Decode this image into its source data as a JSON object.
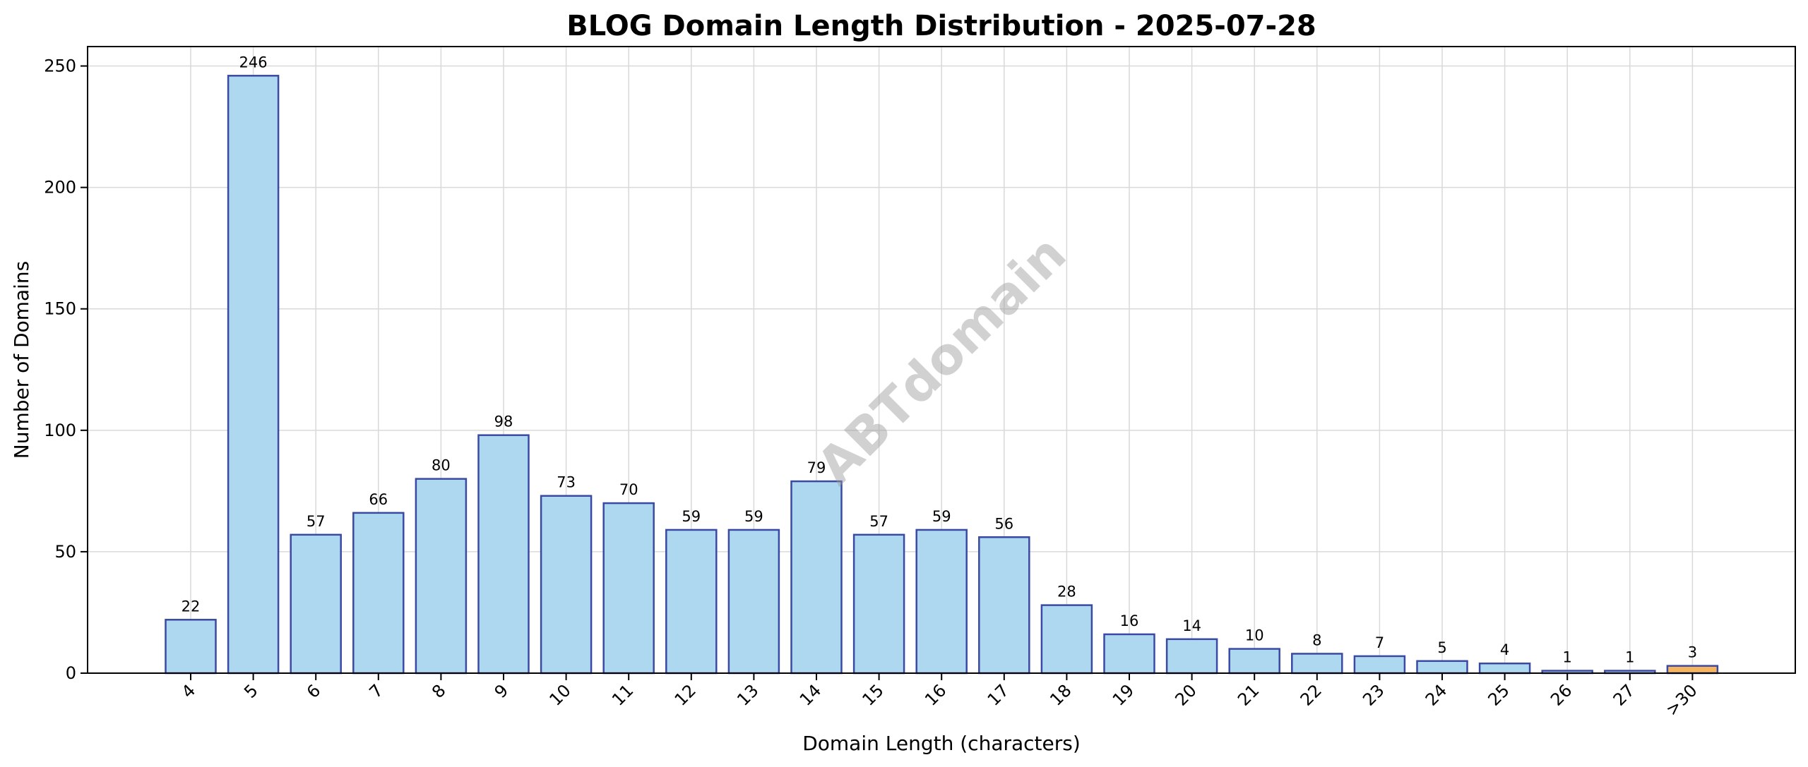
{
  "chart_data": {
    "type": "bar",
    "title": "BLOG Domain Length Distribution - 2025-07-28",
    "xlabel": "Domain Length (characters)",
    "ylabel": "Number of Domains",
    "categories": [
      "4",
      "5",
      "6",
      "7",
      "8",
      "9",
      "10",
      "11",
      "12",
      "13",
      "14",
      "15",
      "16",
      "17",
      "18",
      "19",
      "20",
      "21",
      "22",
      "23",
      "24",
      "25",
      "26",
      "27",
      ">30"
    ],
    "values": [
      22,
      246,
      57,
      66,
      80,
      98,
      73,
      70,
      59,
      59,
      79,
      57,
      59,
      56,
      28,
      16,
      14,
      10,
      8,
      7,
      5,
      4,
      1,
      1,
      3
    ],
    "ylim": [
      0,
      258
    ],
    "yticks": [
      0,
      50,
      100,
      150,
      200,
      250
    ],
    "grid": true,
    "watermark": "ABTdomain",
    "colors": {
      "bar_fill": "#add8ef",
      "bar_highlight_fill": "#f5b45d",
      "bar_edge": "#3a4aa3"
    }
  }
}
